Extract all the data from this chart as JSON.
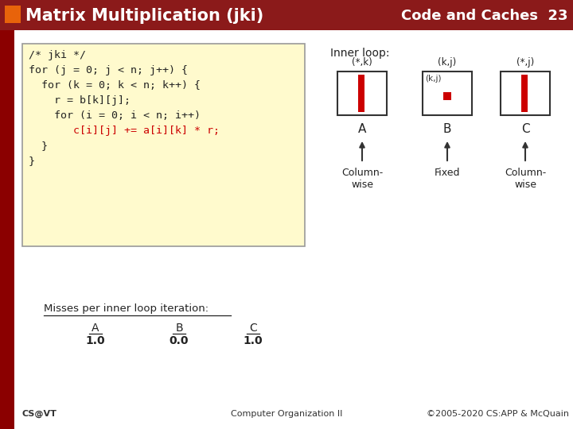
{
  "title": "Matrix Multiplication (jki)",
  "subtitle": "Code and Caches  23",
  "header_bg": "#8B1A1A",
  "slide_bg": "#ffffff",
  "dark_red": "#8B0000",
  "orange_sq": "#E8630A",
  "code_bg": "#FFFACD",
  "code_border": "#999999",
  "code_lines": [
    "/* jki */",
    "for (j = 0; j < n; j++) {",
    "  for (k = 0; k < n; k++) {",
    "    r = b[k][j];",
    "    for (i = 0; i < n; i++)",
    "      c[i][j] += a[i][k] * r;",
    "  }",
    "}"
  ],
  "code_highlight_line": 5,
  "red_color": "#cc0000",
  "inner_loop_label": "Inner loop:",
  "matrix_labels": [
    "(*,k)",
    "(k,j)",
    "(*,j)"
  ],
  "matrix_names": [
    "A",
    "B",
    "C"
  ],
  "matrix_access": [
    "Column-\nwise",
    "Fixed",
    "Column-\nwise"
  ],
  "misses_title": "Misses per inner loop iteration:",
  "misses_labels": [
    "A",
    "B",
    "C"
  ],
  "misses_values": [
    "1.0",
    "0.0",
    "1.0"
  ],
  "footer_left": "CS@VT",
  "footer_center": "Computer Organization II",
  "footer_right": "©2005-2020 CS:APP & McQuain"
}
